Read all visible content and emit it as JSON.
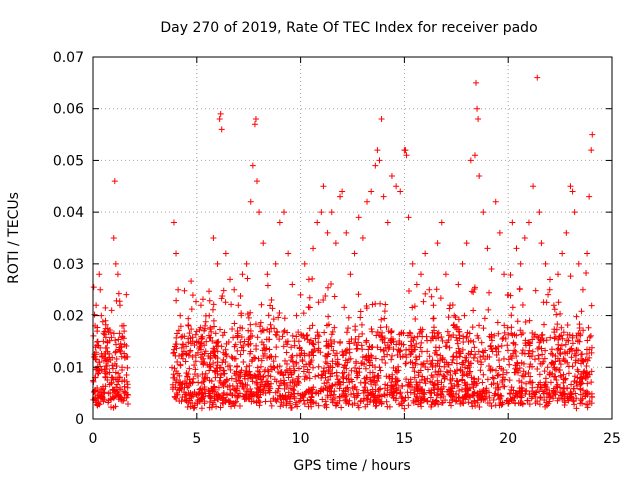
{
  "chart_data": {
    "type": "scatter",
    "title": "Day 270 of 2019, Rate Of TEC Index for receiver pado",
    "xlabel": "GPS time / hours",
    "ylabel": "ROTI / TECUs",
    "xlim": [
      0,
      25
    ],
    "ylim": [
      0,
      0.07
    ],
    "xticks": [
      "0",
      "5",
      "10",
      "15",
      "20",
      "25"
    ],
    "yticks": [
      "0",
      "0.01",
      "0.02",
      "0.03",
      "0.04",
      "0.05",
      "0.06",
      "0.07"
    ],
    "grid": true,
    "marker": "plus",
    "color": "#ff0000",
    "data_gap_hours": [
      1.7,
      3.8
    ],
    "series": [
      {
        "name": "ROTI",
        "points": [
          [
            0.05,
            0.012
          ],
          [
            0.1,
            0.018
          ],
          [
            0.15,
            0.022
          ],
          [
            0.2,
            0.017
          ],
          [
            0.3,
            0.028
          ],
          [
            0.35,
            0.025
          ],
          [
            0.4,
            0.02
          ],
          [
            0.5,
            0.015
          ],
          [
            0.6,
            0.019
          ],
          [
            0.7,
            0.013
          ],
          [
            0.8,
            0.009
          ],
          [
            0.9,
            0.021
          ],
          [
            1.0,
            0.035
          ],
          [
            1.05,
            0.046
          ],
          [
            1.1,
            0.03
          ],
          [
            1.2,
            0.028
          ],
          [
            1.3,
            0.022
          ],
          [
            1.4,
            0.018
          ],
          [
            1.5,
            0.017
          ],
          [
            1.6,
            0.012
          ],
          [
            0.2,
            0.006
          ],
          [
            0.5,
            0.005
          ],
          [
            0.9,
            0.007
          ],
          [
            1.3,
            0.006
          ],
          [
            1.5,
            0.005
          ],
          [
            0.1,
            0.004
          ],
          [
            0.6,
            0.008
          ],
          [
            1.1,
            0.009
          ],
          [
            1.4,
            0.01
          ],
          [
            0.3,
            0.011
          ],
          [
            3.9,
            0.038
          ],
          [
            4.0,
            0.032
          ],
          [
            4.1,
            0.025
          ],
          [
            4.2,
            0.02
          ],
          [
            4.4,
            0.016
          ],
          [
            4.6,
            0.018
          ],
          [
            4.8,
            0.012
          ],
          [
            5.0,
            0.015
          ],
          [
            5.2,
            0.022
          ],
          [
            5.4,
            0.018
          ],
          [
            5.6,
            0.02
          ],
          [
            5.8,
            0.035
          ],
          [
            6.0,
            0.03
          ],
          [
            6.1,
            0.058
          ],
          [
            6.15,
            0.059
          ],
          [
            6.2,
            0.056
          ],
          [
            6.4,
            0.032
          ],
          [
            6.6,
            0.027
          ],
          [
            6.8,
            0.025
          ],
          [
            7.0,
            0.022
          ],
          [
            7.2,
            0.028
          ],
          [
            7.4,
            0.03
          ],
          [
            7.6,
            0.042
          ],
          [
            7.7,
            0.049
          ],
          [
            7.8,
            0.057
          ],
          [
            7.85,
            0.058
          ],
          [
            7.9,
            0.046
          ],
          [
            8.0,
            0.04
          ],
          [
            8.2,
            0.034
          ],
          [
            8.4,
            0.028
          ],
          [
            8.6,
            0.023
          ],
          [
            8.8,
            0.03
          ],
          [
            9.0,
            0.038
          ],
          [
            9.2,
            0.04
          ],
          [
            9.4,
            0.032
          ],
          [
            9.6,
            0.026
          ],
          [
            9.8,
            0.02
          ],
          [
            10.0,
            0.024
          ],
          [
            10.2,
            0.03
          ],
          [
            10.4,
            0.027
          ],
          [
            10.6,
            0.033
          ],
          [
            10.8,
            0.038
          ],
          [
            11.0,
            0.04
          ],
          [
            11.1,
            0.045
          ],
          [
            11.3,
            0.036
          ],
          [
            11.5,
            0.04
          ],
          [
            11.7,
            0.034
          ],
          [
            11.9,
            0.043
          ],
          [
            12.0,
            0.044
          ],
          [
            12.2,
            0.036
          ],
          [
            12.4,
            0.028
          ],
          [
            12.6,
            0.032
          ],
          [
            12.8,
            0.039
          ],
          [
            13.0,
            0.035
          ],
          [
            13.2,
            0.042
          ],
          [
            13.4,
            0.044
          ],
          [
            13.6,
            0.049
          ],
          [
            13.7,
            0.052
          ],
          [
            13.8,
            0.05
          ],
          [
            13.9,
            0.058
          ],
          [
            14.0,
            0.043
          ],
          [
            14.2,
            0.038
          ],
          [
            14.4,
            0.047
          ],
          [
            14.6,
            0.045
          ],
          [
            14.8,
            0.044
          ],
          [
            15.0,
            0.052
          ],
          [
            15.05,
            0.052
          ],
          [
            15.1,
            0.051
          ],
          [
            15.2,
            0.039
          ],
          [
            15.4,
            0.03
          ],
          [
            15.6,
            0.026
          ],
          [
            15.8,
            0.028
          ],
          [
            16.0,
            0.032
          ],
          [
            16.2,
            0.025
          ],
          [
            16.4,
            0.022
          ],
          [
            16.6,
            0.034
          ],
          [
            16.8,
            0.038
          ],
          [
            17.0,
            0.028
          ],
          [
            17.2,
            0.022
          ],
          [
            17.4,
            0.02
          ],
          [
            17.6,
            0.026
          ],
          [
            17.8,
            0.03
          ],
          [
            18.0,
            0.034
          ],
          [
            18.2,
            0.05
          ],
          [
            18.4,
            0.051
          ],
          [
            18.45,
            0.065
          ],
          [
            18.5,
            0.06
          ],
          [
            18.55,
            0.058
          ],
          [
            18.6,
            0.047
          ],
          [
            18.8,
            0.04
          ],
          [
            19.0,
            0.033
          ],
          [
            19.2,
            0.029
          ],
          [
            19.4,
            0.042
          ],
          [
            19.6,
            0.036
          ],
          [
            19.8,
            0.028
          ],
          [
            20.0,
            0.024
          ],
          [
            20.2,
            0.038
          ],
          [
            20.4,
            0.033
          ],
          [
            20.6,
            0.03
          ],
          [
            20.8,
            0.035
          ],
          [
            21.0,
            0.038
          ],
          [
            21.2,
            0.045
          ],
          [
            21.4,
            0.066
          ],
          [
            21.5,
            0.04
          ],
          [
            21.6,
            0.034
          ],
          [
            21.8,
            0.03
          ],
          [
            22.0,
            0.025
          ],
          [
            22.2,
            0.022
          ],
          [
            22.4,
            0.028
          ],
          [
            22.6,
            0.032
          ],
          [
            22.8,
            0.036
          ],
          [
            23.0,
            0.045
          ],
          [
            23.1,
            0.044
          ],
          [
            23.2,
            0.04
          ],
          [
            23.4,
            0.03
          ],
          [
            23.6,
            0.025
          ],
          [
            23.8,
            0.032
          ],
          [
            23.9,
            0.043
          ],
          [
            24.0,
            0.052
          ],
          [
            24.05,
            0.055
          ],
          [
            4.2,
            0.006
          ],
          [
            4.8,
            0.007
          ],
          [
            5.5,
            0.008
          ],
          [
            6.3,
            0.005
          ],
          [
            7.1,
            0.009
          ],
          [
            7.9,
            0.006
          ],
          [
            8.7,
            0.01
          ],
          [
            9.5,
            0.007
          ],
          [
            10.3,
            0.008
          ],
          [
            11.2,
            0.006
          ],
          [
            12.1,
            0.009
          ],
          [
            12.9,
            0.007
          ],
          [
            13.8,
            0.01
          ],
          [
            14.7,
            0.006
          ],
          [
            15.5,
            0.008
          ],
          [
            16.3,
            0.005
          ],
          [
            17.1,
            0.009
          ],
          [
            17.9,
            0.007
          ],
          [
            18.7,
            0.011
          ],
          [
            19.5,
            0.006
          ],
          [
            20.3,
            0.009
          ],
          [
            21.1,
            0.007
          ],
          [
            21.9,
            0.01
          ],
          [
            22.7,
            0.006
          ],
          [
            23.5,
            0.008
          ],
          [
            15.0,
            0.002
          ],
          [
            16.5,
            0.003
          ],
          [
            10.0,
            0.004
          ],
          [
            20.0,
            0.003
          ],
          [
            13.0,
            0.012
          ]
        ]
      }
    ]
  }
}
